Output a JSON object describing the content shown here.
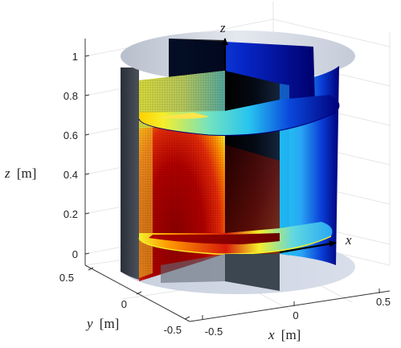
{
  "figure": {
    "colors": {
      "hot_dark": "#8b0000",
      "hot": "#d81b0b",
      "warm": "#ff7a00",
      "yellow": "#f5ef2a",
      "cyan": "#27c4f0",
      "blue": "#0b2bd6",
      "navy": "#00007a",
      "cylinder_grey": "#cfd6e4",
      "shadow_wall": "#2b2f36"
    },
    "axes": {
      "z_label_var": "z",
      "z_label_unit": "[m]",
      "y_label_var": "y",
      "y_label_unit": "[m]",
      "x_label_var": "x",
      "x_label_unit": "[m]",
      "z_ticks": [
        "1",
        "0.8",
        "0.6",
        "0.4",
        "0.2",
        "0"
      ],
      "y_ticks": [
        "0.5",
        "0",
        "-0.5"
      ],
      "x_ticks": [
        "-0.5",
        "0",
        "0.5"
      ]
    },
    "arrows": {
      "z_arrow_label": "z",
      "x_arrow_label": "x"
    }
  }
}
